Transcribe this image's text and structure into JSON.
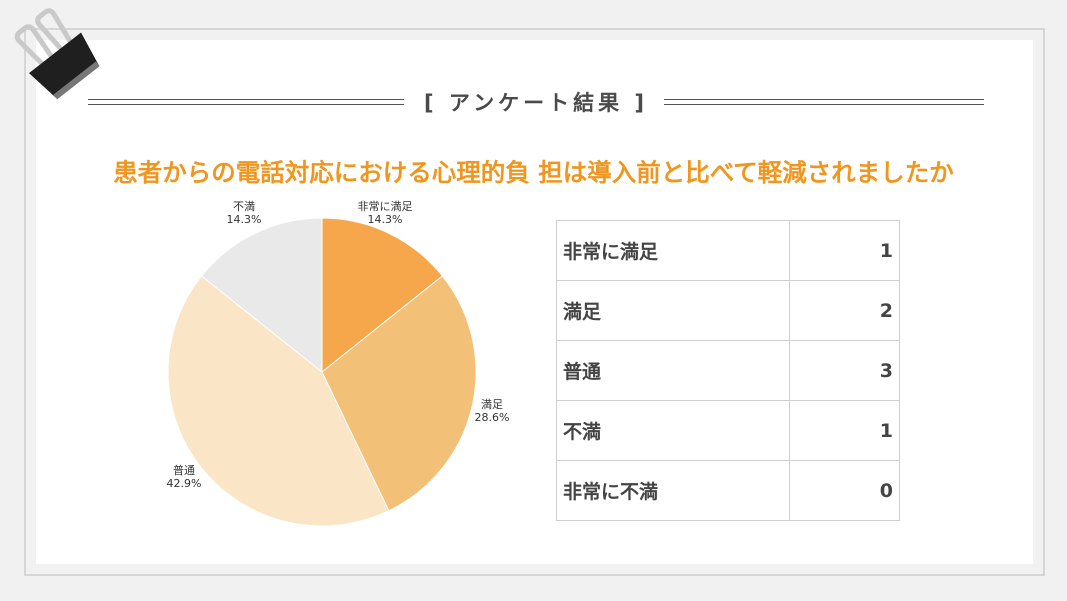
{
  "header": {
    "title": "[ アンケート結果 ]"
  },
  "question": "患者からの電話対応における心理的負 担は導入前と比べて軽減されましたか",
  "chart_data": {
    "type": "pie",
    "title": "",
    "slices": [
      {
        "label": "非常に満足",
        "value": 1,
        "percent": "14.3%",
        "color": "#f7a74b"
      },
      {
        "label": "満足",
        "value": 2,
        "percent": "28.6%",
        "color": "#f2c076"
      },
      {
        "label": "普通",
        "value": 3,
        "percent": "42.9%",
        "color": "#fae5c6"
      },
      {
        "label": "不満",
        "value": 1,
        "percent": "14.3%",
        "color": "#e9e9e9"
      }
    ],
    "legend": "none"
  },
  "table": {
    "rows": [
      {
        "label": "非常に満足",
        "count": "1"
      },
      {
        "label": "満足",
        "count": "2"
      },
      {
        "label": "普通",
        "count": "3"
      },
      {
        "label": "不満",
        "count": "1"
      },
      {
        "label": "非常に不満",
        "count": "0"
      }
    ]
  }
}
